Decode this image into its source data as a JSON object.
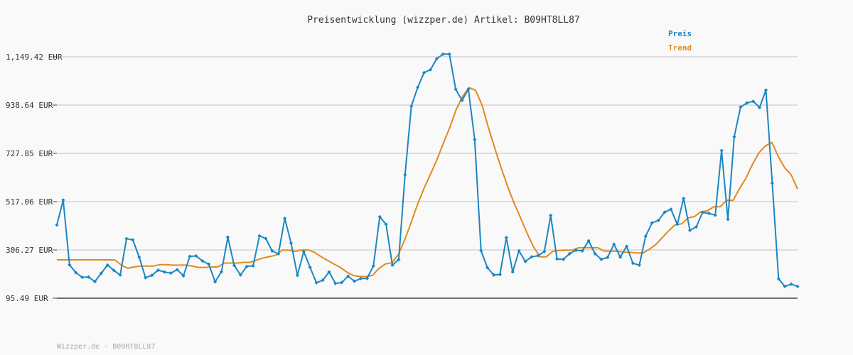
{
  "chart_data": {
    "type": "line",
    "title": "Preisentwicklung (wizzper.de) Artikel: B09HT8LL87",
    "yticks": [
      "1,149.42 EUR",
      "938.64 EUR",
      "727.85 EUR",
      "517.06 EUR",
      "306.27 EUR",
      "95.49 EUR"
    ],
    "ylim": [
      95.49,
      1149.42
    ],
    "grid": true,
    "legend_position": "top-right",
    "series": [
      {
        "name": "Preis",
        "color": "#1a87c3",
        "values": [
          415,
          524,
          241,
          207,
          187,
          188,
          168,
          204,
          240,
          217,
          197,
          355,
          350,
          275,
          185,
          195,
          218,
          210,
          205,
          220,
          193,
          278,
          280,
          258,
          244,
          167,
          211,
          362,
          239,
          197,
          234,
          237,
          368,
          356,
          302,
          289,
          444,
          336,
          195,
          299,
          230,
          163,
          174,
          210,
          160,
          164,
          192,
          170,
          181,
          182,
          236,
          451,
          418,
          240,
          264,
          634,
          934,
          1016,
          1080,
          1093,
          1141,
          1161,
          1161,
          1008,
          959,
          1008,
          788,
          303,
          229,
          197,
          199,
          360,
          210,
          302,
          256,
          276,
          281,
          299,
          457,
          267,
          265,
          290,
          305,
          302,
          346,
          290,
          265,
          274,
          331,
          275,
          322,
          248,
          240,
          366,
          424,
          435,
          471,
          484,
          418,
          531,
          392,
          407,
          470,
          466,
          458,
          740,
          440,
          800,
          930,
          948,
          955,
          928,
          1004,
          598,
          180,
          147,
          157,
          147
        ],
        "marker": "diamond"
      },
      {
        "name": "Trend",
        "color": "#e08a1e",
        "values": [
          263,
          263,
          263,
          263,
          263,
          263,
          263,
          263,
          263,
          263,
          240,
          226,
          232,
          236,
          236,
          236,
          242,
          242,
          240,
          240,
          240,
          236,
          230,
          230,
          232,
          232,
          249,
          249,
          249,
          252,
          252,
          262,
          271,
          277,
          283,
          305,
          305,
          300,
          306,
          306,
          296,
          277,
          261,
          245,
          230,
          210,
          195,
          190,
          190,
          195,
          225,
          245,
          250,
          285,
          350,
          425,
          505,
          575,
          636,
          700,
          772,
          840,
          920,
          976,
          1015,
          1003,
          940,
          840,
          750,
          663,
          582,
          510,
          446,
          380,
          320,
          276,
          276,
          300,
          304,
          305,
          305,
          316,
          316,
          316,
          316,
          301,
          301,
          301,
          296,
          296,
          293,
          293,
          309,
          330,
          360,
          390,
          416,
          420,
          446,
          452,
          473,
          477,
          495,
          495,
          523,
          523,
          575,
          620,
          680,
          730,
          760,
          776,
          715,
          665,
          635,
          572
        ]
      }
    ]
  },
  "footer": "Wizzper.de - B09HT8LL87"
}
